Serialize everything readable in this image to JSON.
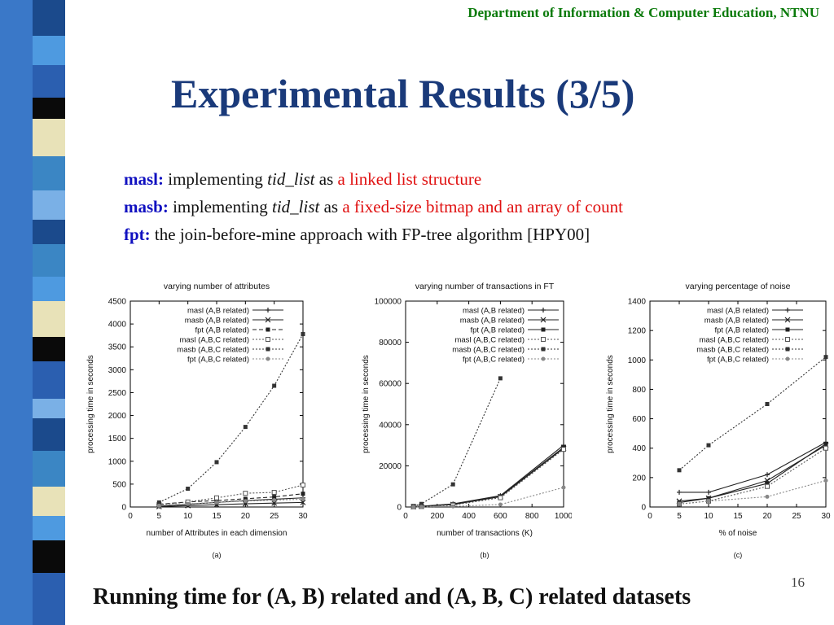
{
  "header": {
    "department": "Department of Information & Computer Education, NTNU",
    "title": "Experimental Results (3/5)"
  },
  "definitions": [
    {
      "term": "masl:",
      "pre": " implementing ",
      "mid": "tid_list",
      "post": " as ",
      "highlight": "a linked list structure"
    },
    {
      "term": "masb:",
      "pre": " implementing ",
      "mid": "tid_list",
      "post": " as ",
      "highlight": "a fixed-size bitmap and an array of count"
    },
    {
      "term": "fpt:",
      "pre": " the join-before-mine approach with FP-tree algorithm [HPY00]",
      "mid": "",
      "post": "",
      "highlight": ""
    }
  ],
  "footer": {
    "caption": "Running time for (A, B) related and (A, B, C) related datasets",
    "slide_number": "16"
  },
  "colors": {
    "title": "#1a3a7a",
    "department": "#0a7a0a",
    "term": "#1010c0",
    "highlight": "#e01010"
  },
  "chart_data": [
    {
      "type": "line",
      "title": "varying number of attributes",
      "panel_label": "(a)",
      "xlabel": "number of Attributes in each dimension",
      "ylabel": "processing time in seconds",
      "xlim": [
        0,
        30
      ],
      "ylim": [
        0,
        4500
      ],
      "xticks": [
        0,
        5,
        10,
        15,
        20,
        25,
        30
      ],
      "xtick_labels": [
        "0",
        "5",
        "10",
        "15",
        "20",
        "25",
        "30"
      ],
      "yticks": [
        0,
        500,
        1000,
        1500,
        2000,
        2500,
        3000,
        3500,
        4000,
        4500
      ],
      "ytick_labels": [
        "0",
        "500",
        "1000",
        "1500",
        "2000",
        "2500",
        "3000",
        "3500",
        "4000",
        "4500"
      ],
      "legend_position": "top-left",
      "series": [
        {
          "name": "masl (A,B related)",
          "style": "solid",
          "marker": "plus",
          "x": [
            5,
            10,
            15,
            20,
            25,
            30
          ],
          "y": [
            20,
            60,
            100,
            140,
            170,
            200
          ]
        },
        {
          "name": "masb (A,B related)",
          "style": "solid",
          "marker": "cross",
          "x": [
            5,
            10,
            15,
            20,
            25,
            30
          ],
          "y": [
            10,
            30,
            50,
            70,
            85,
            100
          ]
        },
        {
          "name": "fpt (A,B related)",
          "style": "dashed",
          "marker": "square",
          "x": [
            5,
            10,
            15,
            20,
            25,
            30
          ],
          "y": [
            60,
            110,
            140,
            180,
            220,
            290
          ]
        },
        {
          "name": "masl (A,B,C related)",
          "style": "dotted",
          "marker": "hollow-square",
          "x": [
            5,
            10,
            15,
            20,
            25,
            30
          ],
          "y": [
            50,
            110,
            200,
            300,
            320,
            480
          ]
        },
        {
          "name": "masb (A,B,C related)",
          "style": "dotted",
          "marker": "filled-square",
          "x": [
            5,
            10,
            15,
            20,
            25,
            30
          ],
          "y": [
            100,
            400,
            980,
            1750,
            2650,
            3780
          ]
        },
        {
          "name": "fpt (A,B,C related)",
          "style": "dotted",
          "marker": "circle",
          "x": [
            5,
            10,
            15,
            20,
            25,
            30
          ],
          "y": [
            30,
            70,
            100,
            130,
            150,
            170
          ]
        }
      ]
    },
    {
      "type": "line",
      "title": "varying number of transactions in FT",
      "panel_label": "(b)",
      "xlabel": "number of transactions (K)",
      "ylabel": "processing time in seconds",
      "xlim": [
        0,
        1000
      ],
      "ylim": [
        0,
        100000
      ],
      "xticks": [
        0,
        200,
        400,
        600,
        800,
        1000
      ],
      "xtick_labels": [
        "0",
        "200",
        "400",
        "600",
        "800",
        "1000"
      ],
      "yticks": [
        0,
        20000,
        40000,
        60000,
        80000,
        100000
      ],
      "ytick_labels": [
        "0",
        "20000",
        "40000",
        "60000",
        "80000",
        "100000"
      ],
      "legend_position": "top-left",
      "series": [
        {
          "name": "masl (A,B related)",
          "style": "solid",
          "marker": "plus",
          "x": [
            50,
            100,
            300,
            600,
            1000
          ],
          "y": [
            200,
            400,
            1500,
            5500,
            30000
          ]
        },
        {
          "name": "masb (A,B related)",
          "style": "solid",
          "marker": "cross",
          "x": [
            50,
            100,
            300,
            600,
            1000
          ],
          "y": [
            150,
            300,
            1200,
            5000,
            28500
          ]
        },
        {
          "name": "fpt (A,B related)",
          "style": "solid",
          "marker": "square",
          "x": [
            50,
            100,
            300,
            600,
            1000
          ],
          "y": [
            180,
            350,
            1300,
            5200,
            29000
          ]
        },
        {
          "name": "masl (A,B,C related)",
          "style": "dotted",
          "marker": "hollow-square",
          "x": [
            50,
            100,
            300,
            600,
            1000
          ],
          "y": [
            120,
            250,
            900,
            4500,
            28000
          ]
        },
        {
          "name": "masb (A,B,C related)",
          "style": "dotted",
          "marker": "filled-square",
          "x": [
            50,
            100,
            300,
            600
          ],
          "y": [
            500,
            1500,
            11000,
            62500
          ]
        },
        {
          "name": "fpt (A,B,C related)",
          "style": "dotted",
          "marker": "circle",
          "x": [
            50,
            100,
            300,
            600,
            1000
          ],
          "y": [
            50,
            100,
            300,
            1200,
            9500
          ]
        }
      ]
    },
    {
      "type": "line",
      "title": "varying percentage of noise",
      "panel_label": "(c)",
      "xlabel": "% of noise",
      "ylabel": "processing time in seconds",
      "xlim": [
        0,
        30
      ],
      "ylim": [
        0,
        1400
      ],
      "xticks": [
        0,
        5,
        10,
        15,
        20,
        25,
        30
      ],
      "xtick_labels": [
        "0",
        "5",
        "10",
        "15",
        "20",
        "25",
        "30"
      ],
      "yticks": [
        0,
        200,
        400,
        600,
        800,
        1000,
        1200,
        1400
      ],
      "ytick_labels": [
        "0",
        "200",
        "400",
        "600",
        "800",
        "1000",
        "1200",
        "1400"
      ],
      "legend_position": "top-left",
      "series": [
        {
          "name": "masl (A,B related)",
          "style": "solid",
          "marker": "plus",
          "x": [
            5,
            10,
            20,
            30
          ],
          "y": [
            100,
            100,
            220,
            440
          ]
        },
        {
          "name": "masb (A,B related)",
          "style": "solid",
          "marker": "cross",
          "x": [
            5,
            10,
            20,
            30
          ],
          "y": [
            40,
            60,
            180,
            420
          ]
        },
        {
          "name": "fpt (A,B related)",
          "style": "solid",
          "marker": "square",
          "x": [
            5,
            10,
            20,
            30
          ],
          "y": [
            30,
            60,
            160,
            430
          ]
        },
        {
          "name": "masl (A,B,C related)",
          "style": "dotted",
          "marker": "hollow-square",
          "x": [
            5,
            10,
            20,
            30
          ],
          "y": [
            20,
            40,
            140,
            400
          ]
        },
        {
          "name": "masb (A,B,C related)",
          "style": "dotted",
          "marker": "filled-square",
          "x": [
            5,
            10,
            20,
            30
          ],
          "y": [
            250,
            420,
            700,
            1020
          ]
        },
        {
          "name": "fpt (A,B,C related)",
          "style": "dotted",
          "marker": "circle",
          "x": [
            5,
            10,
            20,
            30
          ],
          "y": [
            20,
            40,
            70,
            180
          ]
        }
      ]
    }
  ]
}
